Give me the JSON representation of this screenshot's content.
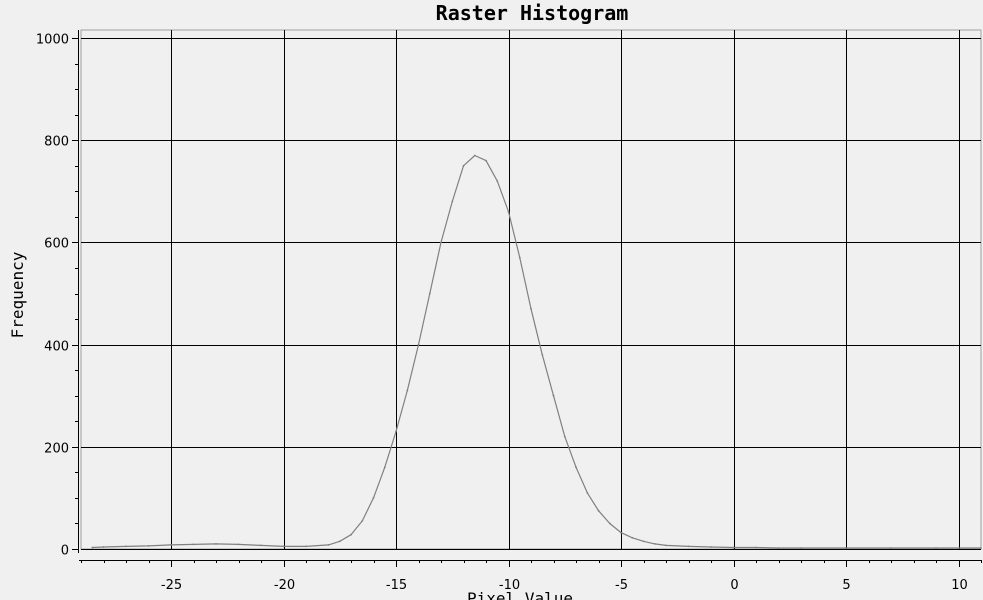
{
  "chart_data": {
    "type": "line",
    "title": "Raster Histogram",
    "xlabel": "Pixel Value",
    "ylabel": "Frequency",
    "xlim": [
      -29,
      11
    ],
    "ylim": [
      0,
      1000
    ],
    "x_ticks": [
      -25,
      -20,
      -15,
      -10,
      -5,
      0,
      5,
      10
    ],
    "y_ticks": [
      0,
      200,
      400,
      600,
      800,
      1000
    ],
    "grid": true,
    "line_color": "#808080",
    "series": [
      {
        "name": "",
        "x": [
          -28.5,
          -28,
          -27,
          -26,
          -25,
          -24,
          -23,
          -22,
          -21,
          -20,
          -19,
          -18,
          -17.5,
          -17,
          -16.5,
          -16,
          -15.5,
          -15,
          -14.5,
          -14,
          -13.5,
          -13,
          -12.5,
          -12,
          -11.5,
          -11,
          -10.5,
          -10,
          -9.5,
          -9,
          -8.5,
          -8,
          -7.5,
          -7,
          -6.5,
          -6,
          -5.5,
          -5,
          -4.5,
          -4,
          -3.5,
          -3,
          -2,
          -1,
          0,
          1,
          2,
          3,
          5,
          7,
          9,
          11
        ],
        "values": [
          3,
          4,
          5,
          6,
          8,
          9,
          10,
          9,
          7,
          5,
          5,
          8,
          15,
          28,
          55,
          100,
          160,
          230,
          310,
          400,
          500,
          600,
          680,
          750,
          770,
          760,
          720,
          660,
          570,
          470,
          380,
          300,
          220,
          160,
          110,
          75,
          50,
          32,
          22,
          15,
          10,
          7,
          5,
          4,
          3,
          3,
          2,
          2,
          2,
          2,
          2,
          2
        ]
      }
    ]
  }
}
